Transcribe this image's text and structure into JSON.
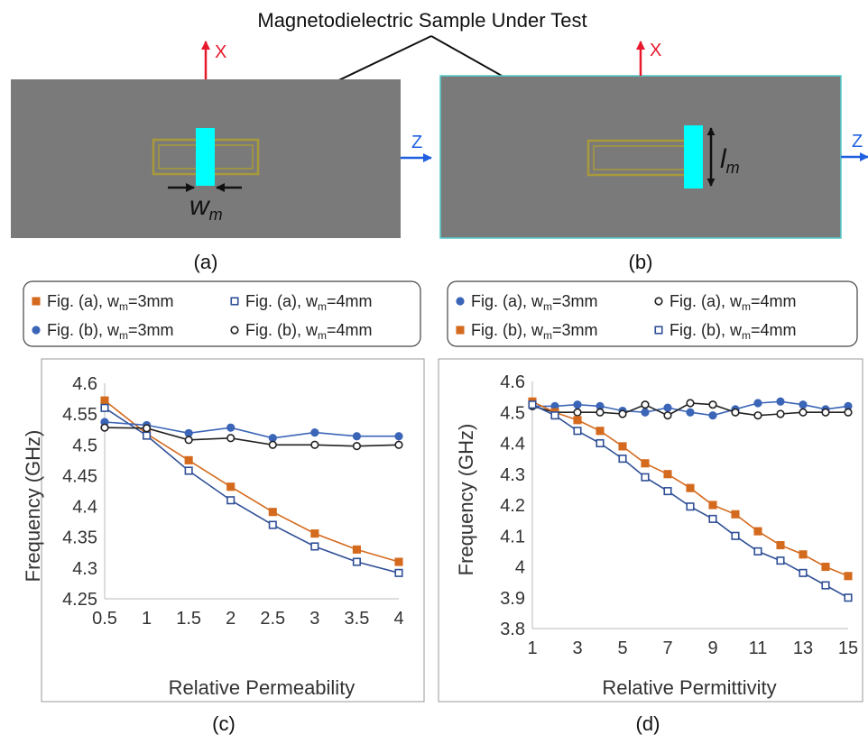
{
  "figure": {
    "top_title": "Magnetodielectric Sample Under Test",
    "panel_a": {
      "caption": "(a)",
      "x_axis": "X",
      "z_axis": "Z",
      "width_label": "w",
      "width_sub": "m"
    },
    "panel_b": {
      "caption": "(b)",
      "x_axis": "X",
      "z_axis": "Z",
      "length_label": "l",
      "length_sub": "m"
    }
  },
  "colors": {
    "substrate": "#7a7a7a",
    "sample": "#00ffff",
    "trace": "#a89a3a",
    "axis_arrow_x": "#e8192c",
    "axis_arrow_z": "#1f5fe0",
    "orange": "#d46a1e",
    "navy": "#2f4f96",
    "blue": "#3b65b7",
    "black": "#222222"
  },
  "chart_data": [
    {
      "type": "line",
      "caption": "(c)",
      "xlabel": "Relative Permeability",
      "ylabel": "Frequency (GHz)",
      "xlim": [
        0.5,
        4
      ],
      "ylim": [
        4.25,
        4.6
      ],
      "x_ticks": [
        "0.5",
        "1",
        "1.5",
        "2",
        "2.5",
        "3",
        "3.5",
        "4"
      ],
      "y_ticks": [
        "4.25",
        "4.3",
        "4.35",
        "4.4",
        "4.45",
        "4.5",
        "4.55",
        "4.6"
      ],
      "x": [
        0.5,
        1,
        1.5,
        2,
        2.5,
        3,
        3.5,
        4
      ],
      "legend": [
        "Fig. (a), w",
        "=3mm",
        "Fig. (a), w",
        "=4mm",
        "Fig. (b), w",
        "=3mm",
        "Fig. (b), w",
        "=4mm",
        "m"
      ],
      "series": [
        {
          "name": "Fig. (a), wm=3mm",
          "color": "#d46a1e",
          "marker": "square-filled",
          "values": [
            4.572,
            4.518,
            4.475,
            4.432,
            4.391,
            4.356,
            4.33,
            4.31
          ]
        },
        {
          "name": "Fig. (a), wm=4mm",
          "color": "#2f4f96",
          "marker": "square-open",
          "values": [
            4.56,
            4.515,
            4.458,
            4.41,
            4.37,
            4.335,
            4.31,
            4.292
          ]
        },
        {
          "name": "Fig. (b), wm=3mm",
          "color": "#3b65b7",
          "marker": "circle-filled",
          "values": [
            4.537,
            4.532,
            4.519,
            4.528,
            4.511,
            4.52,
            4.514,
            4.514
          ]
        },
        {
          "name": "Fig. (b), wm=4mm",
          "color": "#222222",
          "marker": "circle-open",
          "values": [
            4.528,
            4.527,
            4.508,
            4.511,
            4.5,
            4.5,
            4.498,
            4.5
          ]
        }
      ]
    },
    {
      "type": "line",
      "caption": "(d)",
      "xlabel": "Relative Permittivity",
      "ylabel": "Frequency (GHz)",
      "xlim": [
        1,
        15
      ],
      "ylim": [
        3.8,
        4.6
      ],
      "x_ticks": [
        "1",
        "3",
        "5",
        "7",
        "9",
        "11",
        "13",
        "15"
      ],
      "y_ticks": [
        "3.8",
        "3.9",
        "4",
        "4.1",
        "4.2",
        "4.3",
        "4.4",
        "4.5",
        "4.6"
      ],
      "x": [
        1,
        2,
        3,
        4,
        5,
        6,
        7,
        8,
        9,
        10,
        11,
        12,
        13,
        14,
        15
      ],
      "legend": [
        "Fig. (a), w",
        "=3mm",
        "Fig. (a), w",
        "=4mm",
        "Fig. (b), w",
        "=3mm",
        "Fig. (b), w",
        "=4mm",
        "m"
      ],
      "series": [
        {
          "name": "Fig. (a), wm=3mm",
          "color": "#3b65b7",
          "marker": "circle-filled",
          "values": [
            4.52,
            4.52,
            4.525,
            4.52,
            4.505,
            4.5,
            4.515,
            4.5,
            4.49,
            4.51,
            4.53,
            4.535,
            4.525,
            4.51,
            4.52
          ]
        },
        {
          "name": "Fig. (a), wm=4mm",
          "color": "#222222",
          "marker": "circle-open",
          "values": [
            4.52,
            4.5,
            4.5,
            4.5,
            4.495,
            4.525,
            4.49,
            4.53,
            4.525,
            4.5,
            4.49,
            4.495,
            4.5,
            4.5,
            4.5
          ]
        },
        {
          "name": "Fig. (b), wm=3mm",
          "color": "#d46a1e",
          "marker": "square-filled",
          "values": [
            4.535,
            4.5,
            4.475,
            4.44,
            4.39,
            4.335,
            4.3,
            4.255,
            4.2,
            4.17,
            4.115,
            4.07,
            4.04,
            4.0,
            3.97
          ]
        },
        {
          "name": "Fig. (b), wm=4mm",
          "color": "#2f4f96",
          "marker": "square-open",
          "values": [
            4.525,
            4.49,
            4.44,
            4.4,
            4.35,
            4.29,
            4.245,
            4.195,
            4.155,
            4.1,
            4.05,
            4.02,
            3.98,
            3.94,
            3.9
          ]
        }
      ]
    }
  ]
}
